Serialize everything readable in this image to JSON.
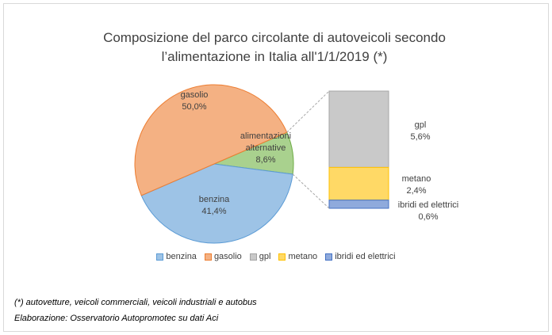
{
  "chart_data": {
    "type": "pie-of-bar",
    "title": "Composizione del parco circolante di autoveicoli secondo l’alimentazione in Italia all'1/1/2019 (*)",
    "categories": [
      "benzina",
      "gasolio",
      "alimentazioni alternative"
    ],
    "values": [
      41.4,
      50.0,
      8.6
    ],
    "value_labels": [
      "41,4%",
      "50,0%",
      "8,6%"
    ],
    "colors": [
      "#9dc3e6",
      "#f4b183",
      "#a9d18e"
    ],
    "breakdown": {
      "categories": [
        "gpl",
        "metano",
        "ibridi ed elettrici"
      ],
      "values": [
        5.6,
        2.4,
        0.6
      ],
      "value_labels": [
        "5,6%",
        "2,4%",
        "0,6%"
      ],
      "colors": [
        "#c9c9c9",
        "#ffd966",
        "#8faadc"
      ]
    },
    "notes": [
      "(*) autovetture, veicoli commerciali, veicoli industriali e autobus",
      "Elaborazione: Osservatorio Autopromotec su dati Aci"
    ]
  }
}
